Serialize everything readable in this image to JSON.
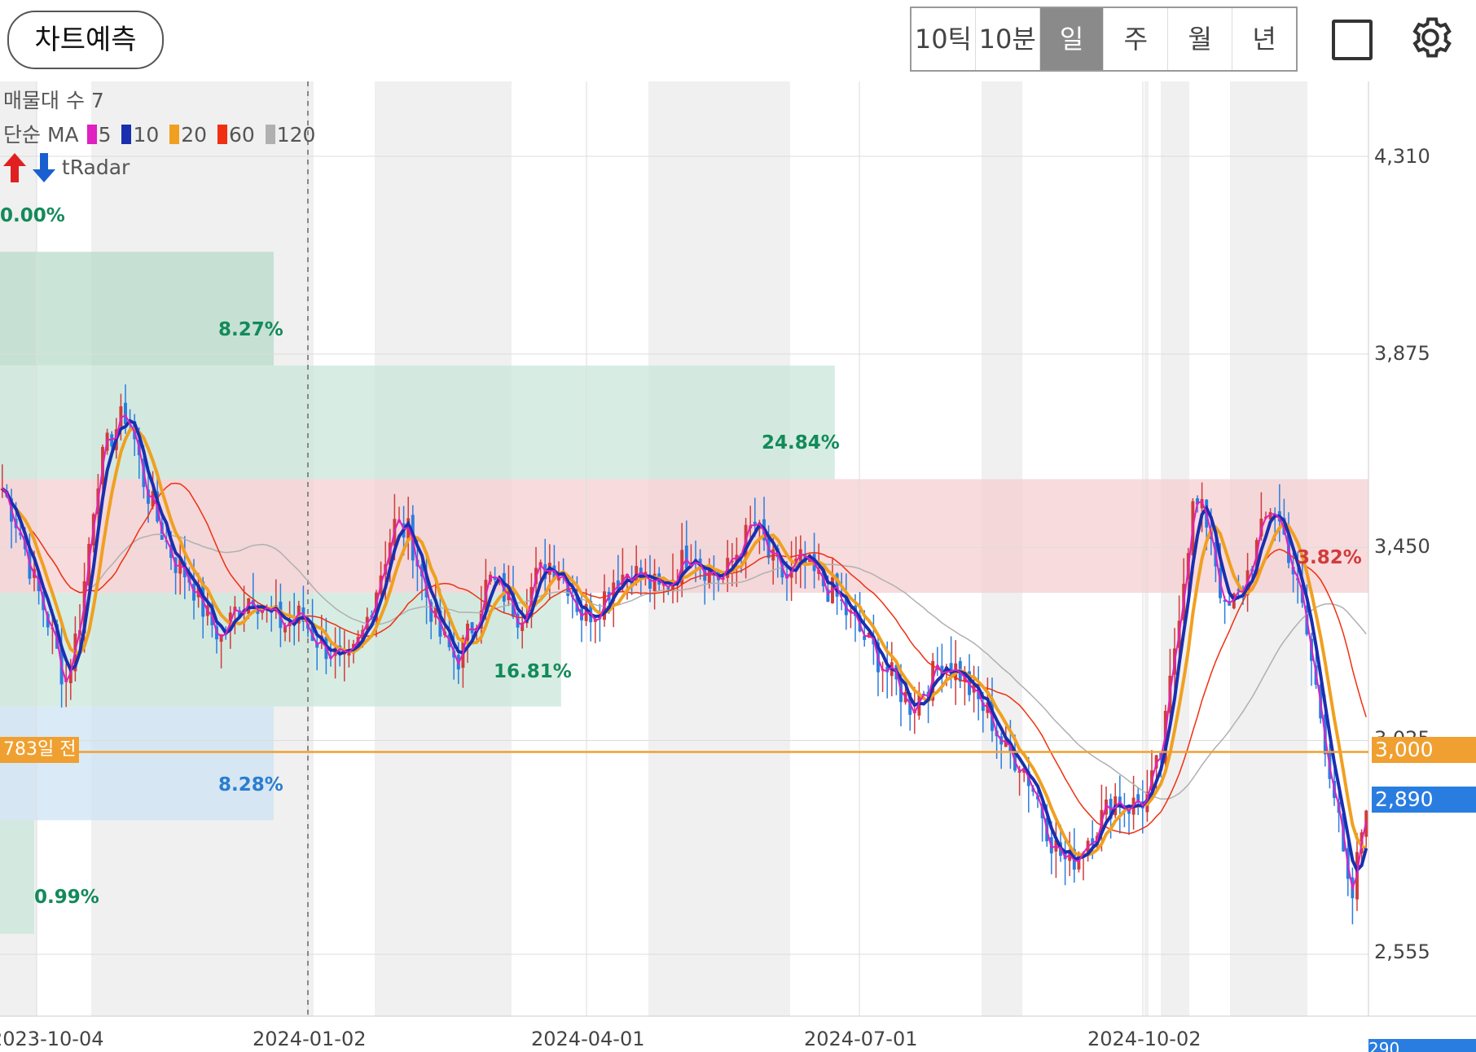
{
  "toolbar": {
    "predict_label": "차트예측",
    "timeframes": [
      "10틱",
      "10분",
      "일",
      "주",
      "월",
      "년"
    ],
    "active_timeframe": "일"
  },
  "legend": {
    "volume_profile": "매물대 수 7",
    "ma_prefix": "단순 MA",
    "ma_items": [
      {
        "period": "5",
        "color": "#e020c0"
      },
      {
        "period": "10",
        "color": "#1a2fb0"
      },
      {
        "period": "20",
        "color": "#f0a020"
      },
      {
        "period": "60",
        "color": "#f03010"
      },
      {
        "period": "120",
        "color": "#b0b0b0"
      }
    ],
    "tradar": "tRadar"
  },
  "chart_data": {
    "type": "candlestick",
    "y_ticks": [
      "4,310",
      "3,875",
      "3,450",
      "3,025",
      "2,555"
    ],
    "ylim": [
      2480,
      4440
    ],
    "x_ticks": [
      "2023-10-04",
      "2024-01-02",
      "2024-04-01",
      "2024-07-01",
      "2024-10-02"
    ],
    "current_price": "2,890",
    "reference_price": "3,000",
    "reference_note": "783일 전",
    "bottom_tag": "290",
    "volume_zones": [
      {
        "low": 3850,
        "high": 4100,
        "label": "8.27%",
        "extent": 0.2,
        "color": "#b8dccb"
      },
      {
        "low": 3600,
        "high": 3850,
        "label": "24.84%",
        "extent": 0.61,
        "color": "#c9e7db"
      },
      {
        "low": 3350,
        "high": 3600,
        "label": "",
        "extent": 1.0,
        "color": "#f6cfd1"
      },
      {
        "low": 3100,
        "high": 3350,
        "label": "16.81%",
        "extent": 0.41,
        "color": "#c9e7db"
      },
      {
        "low": 2850,
        "high": 3100,
        "label": "8.28%",
        "extent": 0.2,
        "color": "#cde3f3"
      },
      {
        "low": 2600,
        "high": 2850,
        "label": "0.99%",
        "extent": 0.025,
        "color": "#c9e7db"
      }
    ],
    "zone_labels": [
      {
        "text": "0.00%",
        "color": "#138a5a"
      },
      {
        "text": "8.27%",
        "color": "#138a5a"
      },
      {
        "text": "24.84%",
        "color": "#138a5a"
      },
      {
        "text": "3.82%",
        "color": "#d03c3c"
      },
      {
        "text": "16.81%",
        "color": "#138a5a"
      },
      {
        "text": "8.28%",
        "color": "#2a7dd0"
      },
      {
        "text": "0.99%",
        "color": "#138a5a"
      }
    ],
    "close_path": [
      3580,
      3500,
      3380,
      3280,
      3150,
      3300,
      3600,
      3700,
      3750,
      3600,
      3500,
      3420,
      3380,
      3300,
      3250,
      3320,
      3350,
      3300,
      3280,
      3300,
      3250,
      3220,
      3180,
      3260,
      3380,
      3500,
      3480,
      3350,
      3250,
      3200,
      3280,
      3380,
      3350,
      3300,
      3380,
      3420,
      3380,
      3300,
      3320,
      3380,
      3400,
      3380,
      3350,
      3400,
      3450,
      3400,
      3380,
      3450,
      3500,
      3420,
      3380,
      3420,
      3380,
      3350,
      3300,
      3250,
      3200,
      3150,
      3100,
      3150,
      3200,
      3180,
      3120,
      3080,
      3000,
      2980,
      2900,
      2800,
      2750,
      2800,
      2850,
      2900,
      2880,
      2900,
      3000,
      3300,
      3550,
      3500,
      3300,
      3350,
      3450,
      3550,
      3450,
      3300,
      3100,
      2900,
      2650,
      2900
    ]
  },
  "colors": {
    "up": "#d03c3c",
    "down": "#2a7de0",
    "ma5": "#e020c0",
    "ma10": "#1a2fb0",
    "ma20": "#f0a020",
    "ma60": "#f03010",
    "ma120": "#b0b0b0"
  }
}
